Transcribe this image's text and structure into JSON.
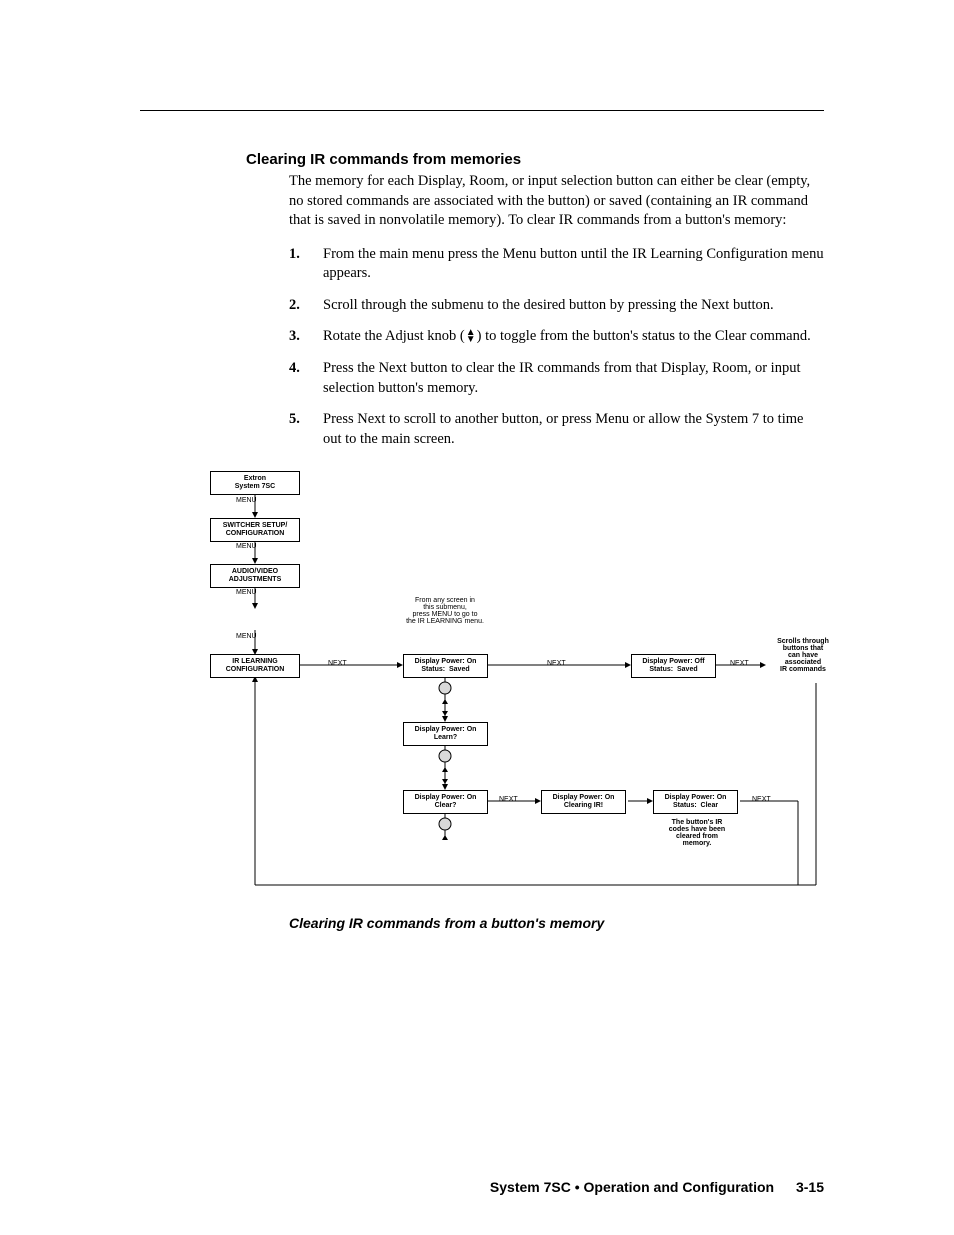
{
  "heading": "Clearing IR commands from memories",
  "intro": "The memory for each Display, Room, or input selection button can either be clear (empty, no stored commands are associated with the button) or saved (containing an IR command that is saved in nonvolatile memory).  To clear IR commands from a button's memory:",
  "steps": [
    "From the main menu press the Menu button until the IR Learning Configuration menu appears.",
    "Scroll through the submenu to the desired button by pressing the Next button.",
    "Rotate the Adjust knob (KNOB_ICON) to toggle from the button's status to the Clear command.",
    "Press the Next button to clear the IR commands from that Display, Room, or input selection button's memory.",
    "Press Next to scroll to another button, or press Menu or allow the System 7 to time out to the main screen."
  ],
  "flow": {
    "menu_label": "MENU",
    "next_label": "NEXT",
    "boxes": {
      "b1": "Extron\nSystem 7SC",
      "b2": "SWITCHER SETUP/\nCONFIGURATION",
      "b3": "AUDIO/VIDEO\nADJUSTMENTS",
      "b4": "IR LEARNING\nCONFIGURATION",
      "c1": "Display Power: On\nStatus:  Saved",
      "c2": "Display Power: Off\nStatus:  Saved",
      "c3": "Display Power: On\nLearn?",
      "c4": "Display Power: On\nClear?",
      "c5": "Display Power: On\nClearing IR!",
      "c6": "Display Power: On\nStatus:  Clear"
    },
    "note1": "From any screen in\nthis submenu,\npress MENU to go to\nthe IR LEARNING menu.",
    "note2": "Scrolls through\nbuttons that\ncan have\nassociated\nIR commands",
    "note3": "The button's IR\ncodes have been\ncleared from\nmemory."
  },
  "figure_caption": "Clearing IR commands from a button's memory",
  "footer_title": "System 7SC • Operation and Configuration",
  "footer_page": "3-15"
}
